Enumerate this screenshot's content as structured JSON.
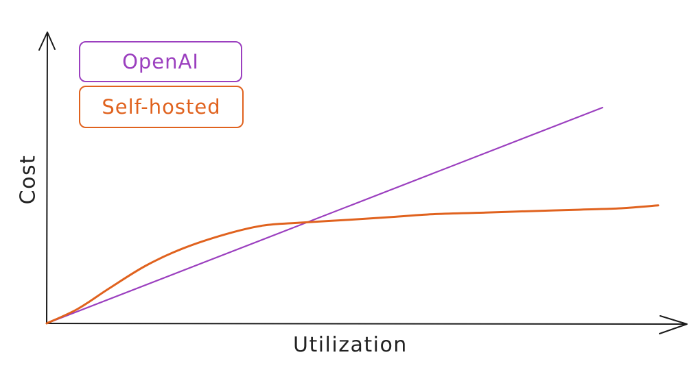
{
  "chart_data": {
    "type": "line",
    "title": "",
    "xlabel": "Utilization",
    "ylabel": "Cost",
    "xlim": [
      0,
      100
    ],
    "ylim": [
      0,
      100
    ],
    "grid": false,
    "legend_position": "top-left",
    "series": [
      {
        "name": "OpenAI",
        "color": "#9b3fbf",
        "x": [
          0,
          90
        ],
        "values": [
          0,
          75
        ]
      },
      {
        "name": "Self-hosted",
        "color": "#e0621e",
        "x": [
          0,
          5,
          10,
          16,
          22,
          29,
          35,
          41,
          49,
          56,
          63,
          71,
          78,
          86,
          93,
          99
        ],
        "values": [
          0,
          5,
          12,
          20,
          26,
          31,
          34,
          35,
          36,
          37,
          38,
          38.5,
          39,
          39.5,
          40,
          41
        ]
      }
    ]
  }
}
